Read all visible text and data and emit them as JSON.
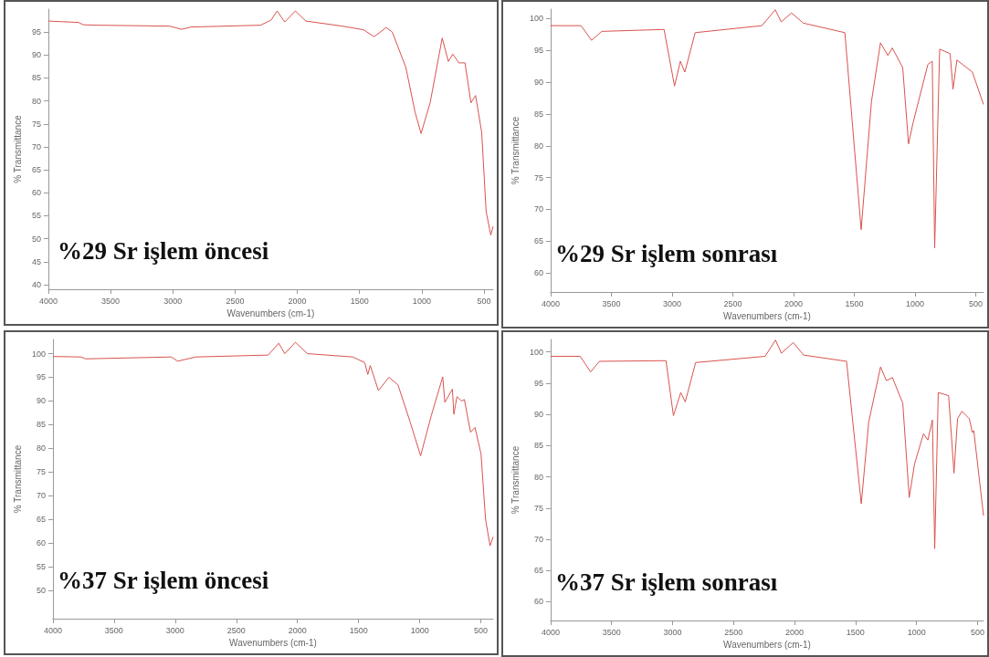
{
  "chart_data": [
    {
      "type": "line",
      "title": "%29 Sr işlem öncesi",
      "xlabel": "Wavenumbers (cm-1)",
      "ylabel": "% Transmittance",
      "xlim": [
        4000,
        427
      ],
      "xticks": [
        4000,
        3500,
        3000,
        2500,
        2000,
        1500,
        1000,
        500
      ],
      "ylim": [
        39,
        100
      ],
      "yticks": [
        40,
        45,
        50,
        55,
        60,
        65,
        70,
        75,
        80,
        85,
        90,
        95
      ],
      "grid": false,
      "marker": "none",
      "series": [
        {
          "color": "#d9534f",
          "x": [
            4000,
            3757,
            3720,
            3611,
            3026,
            2929,
            2856,
            2296,
            2211,
            2162,
            2101,
            2016,
            1931,
            1639,
            1468,
            1383,
            1286,
            1237,
            1128,
            1055,
            1006,
            933,
            836,
            787,
            751,
            702,
            653,
            605,
            568,
            519,
            483,
            446,
            427
          ],
          "values": [
            97.4,
            97.1,
            96.6,
            96.5,
            96.3,
            95.6,
            96.1,
            96.5,
            97.6,
            99.6,
            97.2,
            99.6,
            97.4,
            96.3,
            95.5,
            94.0,
            96.0,
            95.0,
            87.3,
            77.7,
            72.9,
            79.6,
            93.7,
            88.6,
            90.2,
            88.3,
            88.3,
            79.6,
            81.2,
            73.2,
            55.9,
            50.8,
            52.7
          ]
        }
      ]
    },
    {
      "type": "line",
      "title": "%29 Sr işlem sonrası",
      "xlabel": "Wavenumbers (cm-1)",
      "ylabel": "% Transmittance",
      "xlim": [
        4000,
        437
      ],
      "xticks": [
        4000,
        3500,
        3000,
        2500,
        2000,
        1500,
        1000,
        500
      ],
      "ylim": [
        57,
        101.5
      ],
      "yticks": [
        60,
        65,
        70,
        75,
        80,
        85,
        90,
        95,
        100
      ],
      "grid": false,
      "marker": "none",
      "series": [
        {
          "color": "#d9534f",
          "x": [
            4000,
            3749,
            3663,
            3578,
            3066,
            2980,
            2932,
            2895,
            2810,
            2261,
            2151,
            2102,
            2017,
            1920,
            1578,
            1444,
            1359,
            1285,
            1224,
            1188,
            1102,
            1054,
            1017,
            895,
            859,
            839,
            798,
            712,
            688,
            656,
            529,
            437
          ],
          "values": [
            98.9,
            98.9,
            96.6,
            98.0,
            98.3,
            89.4,
            93.3,
            91.6,
            97.8,
            98.9,
            101.4,
            99.5,
            100.9,
            99.3,
            97.8,
            66.8,
            87.0,
            96.2,
            94.2,
            95.4,
            92.3,
            80.3,
            83.6,
            92.8,
            93.3,
            63.9,
            95.2,
            94.5,
            88.9,
            93.5,
            91.6,
            86.5
          ]
        }
      ]
    },
    {
      "type": "line",
      "title": "%37 Sr işlem öncesi",
      "xlabel": "Wavenumbers (cm-1)",
      "ylabel": "% Transmittance",
      "xlim": [
        4000,
        400
      ],
      "xticks": [
        4000,
        3500,
        3000,
        2500,
        2000,
        1500,
        1000,
        500
      ],
      "ylim": [
        44,
        103
      ],
      "yticks": [
        50,
        55,
        60,
        65,
        70,
        75,
        80,
        85,
        90,
        95,
        100
      ],
      "grid": false,
      "marker": "none",
      "series": [
        {
          "color": "#d9534f",
          "x": [
            4000,
            3770,
            3733,
            3030,
            2980,
            2832,
            2240,
            2153,
            2104,
            2017,
            1919,
            1548,
            1450,
            1425,
            1405,
            1338,
            1252,
            1178,
            1079,
            993,
            906,
            812,
            795,
            733,
            721,
            696,
            659,
            635,
            585,
            548,
            499,
            462,
            425,
            400
          ],
          "values": [
            99.4,
            99.3,
            98.9,
            99.3,
            98.4,
            99.3,
            99.7,
            102.2,
            100.0,
            102.4,
            100.0,
            99.3,
            98.1,
            95.6,
            97.5,
            92.2,
            95.0,
            93.4,
            85.6,
            78.4,
            86.9,
            95.1,
            89.7,
            92.5,
            87.2,
            90.9,
            90.0,
            90.3,
            83.4,
            84.4,
            78.8,
            65.0,
            59.4,
            61.3
          ]
        }
      ]
    },
    {
      "type": "line",
      "title": "%37 Sr işlem sonrası",
      "xlabel": "Wavenumbers (cm-1)",
      "ylabel": "% Transmittance",
      "xlim": [
        4000,
        451
      ],
      "xticks": [
        4000,
        3500,
        3000,
        2500,
        2000,
        1500,
        1000,
        500
      ],
      "ylim": [
        57,
        102
      ],
      "yticks": [
        60,
        65,
        70,
        75,
        80,
        85,
        90,
        95,
        100
      ],
      "grid": false,
      "marker": "none",
      "series": [
        {
          "color": "#d9534f",
          "x": [
            4000,
            3757,
            3672,
            3600,
            3054,
            2993,
            2933,
            2896,
            2811,
            2241,
            2156,
            2108,
            2011,
            1926,
            1574,
            1453,
            1392,
            1295,
            1247,
            1198,
            1113,
            1060,
            1016,
            943,
            907,
            870,
            851,
            822,
            737,
            693,
            664,
            628,
            567,
            543,
            531,
            451
          ],
          "values": [
            99.3,
            99.3,
            96.8,
            98.5,
            98.6,
            89.8,
            93.5,
            92.0,
            98.3,
            99.3,
            101.9,
            99.8,
            101.5,
            99.5,
            98.5,
            75.7,
            88.8,
            97.6,
            95.4,
            95.9,
            91.8,
            76.7,
            82.1,
            86.9,
            85.9,
            89.1,
            68.5,
            93.5,
            93.0,
            80.6,
            89.3,
            90.5,
            89.3,
            87.1,
            87.4,
            73.8
          ]
        }
      ]
    }
  ]
}
